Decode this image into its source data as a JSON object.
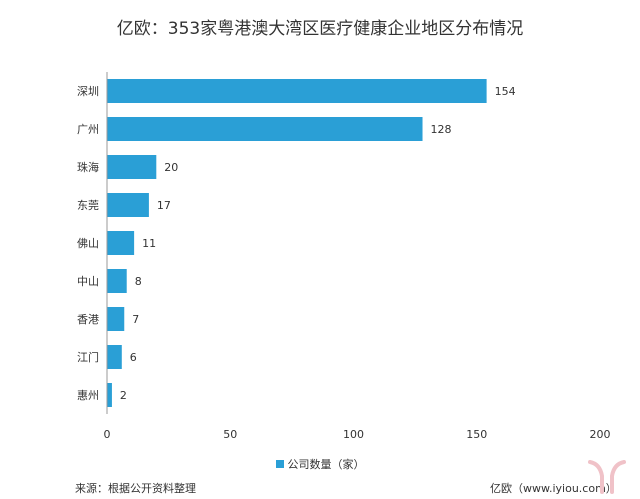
{
  "title": "亿欧：353家粤港澳大湾区医疗健康企业地区分布情况",
  "legend_label": "公司数量（家）",
  "source_text": "来源：根据公开资料整理",
  "watermark_text": "亿欧（www.iyiou.com）",
  "colors": {
    "bar": "#2a9fd6",
    "axis": "#999999"
  },
  "chart_data": {
    "type": "bar",
    "orientation": "horizontal",
    "title": "亿欧：353家粤港澳大湾区医疗健康企业地区分布情况",
    "categories": [
      "深圳",
      "广州",
      "珠海",
      "东莞",
      "佛山",
      "中山",
      "香港",
      "江门",
      "惠州"
    ],
    "series": [
      {
        "name": "公司数量（家）",
        "values": [
          154,
          128,
          20,
          17,
          11,
          8,
          7,
          6,
          2
        ]
      }
    ],
    "xlim": [
      0,
      200
    ],
    "xticks": [
      0,
      50,
      100,
      150,
      200
    ],
    "grid": false,
    "legend_position": "bottom",
    "data_labels": true
  }
}
